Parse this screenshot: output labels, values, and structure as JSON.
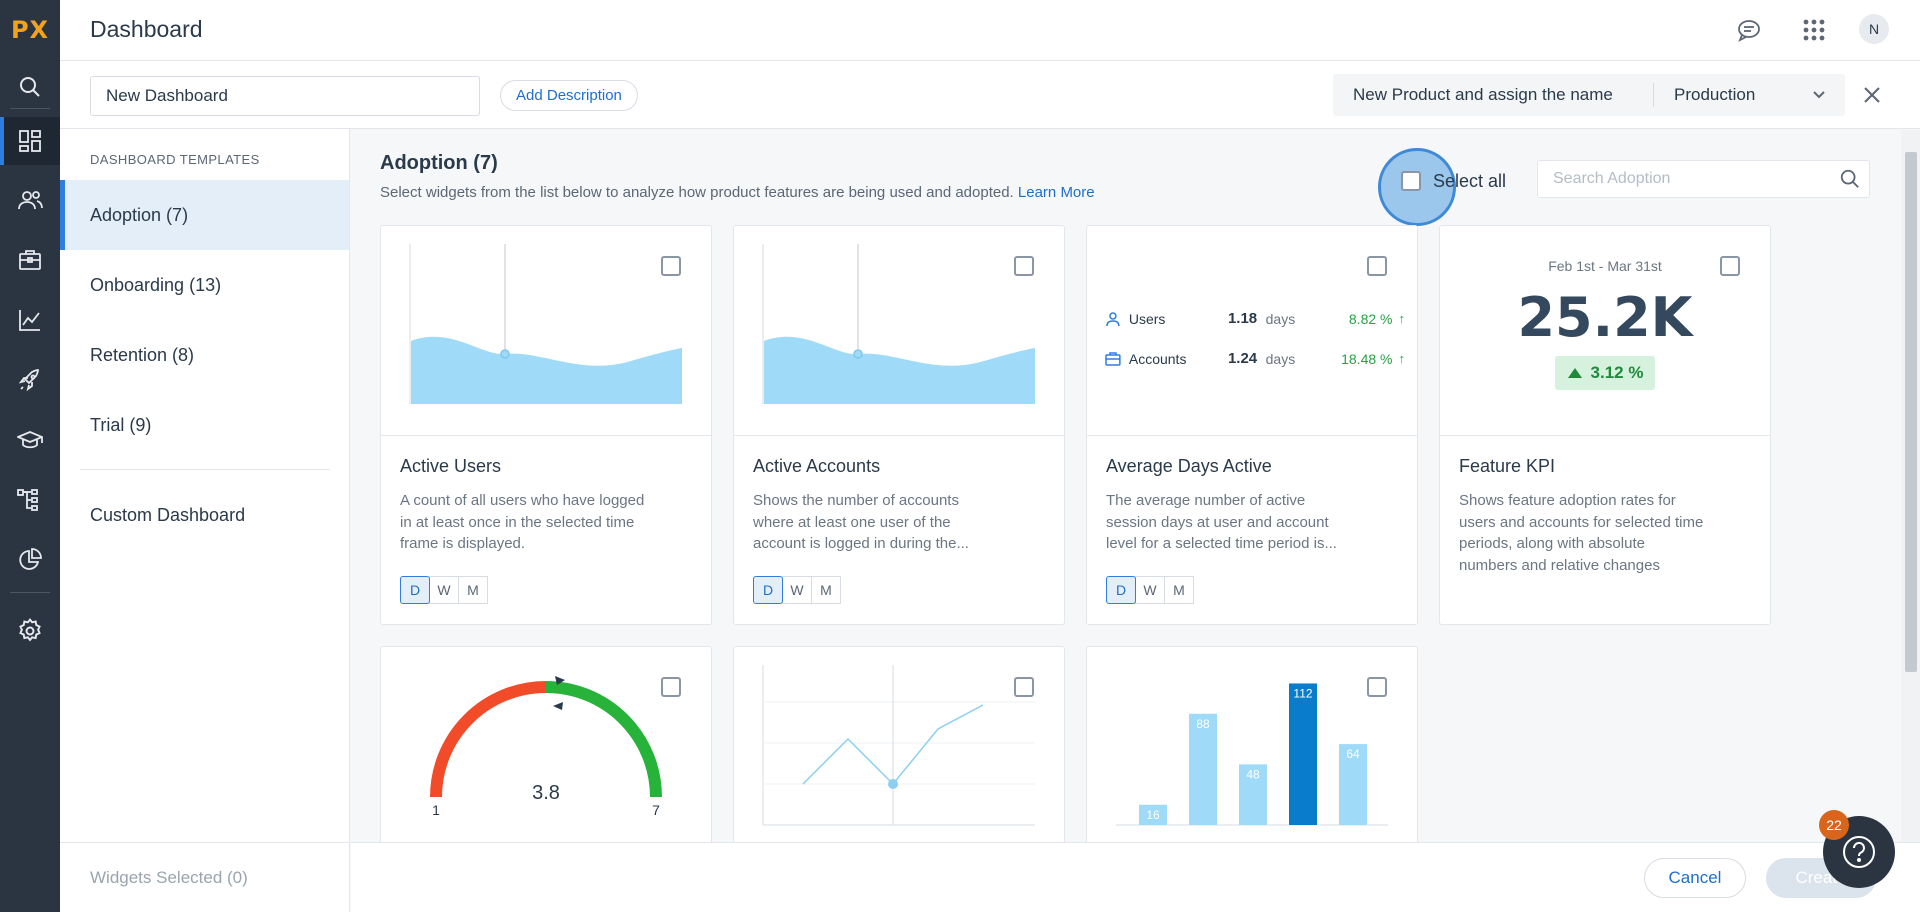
{
  "app": {
    "logo": "PX",
    "title": "Dashboard",
    "avatar_initial": "N"
  },
  "toolbar": {
    "dashboard_name": "New Dashboard",
    "add_description": "Add Description",
    "product_name": "New Product and assign the name",
    "environment": "Production"
  },
  "sidebar": {
    "heading": "DASHBOARD TEMPLATES",
    "items": [
      {
        "label": "Adoption (7)"
      },
      {
        "label": "Onboarding (13)"
      },
      {
        "label": "Retention (8)"
      },
      {
        "label": "Trial (9)"
      }
    ],
    "custom": "Custom Dashboard",
    "widgets_selected": "Widgets Selected (0)"
  },
  "main": {
    "title": "Adoption (7)",
    "description": "Select widgets from the list below to analyze how product features are being used and adopted.",
    "learn_more": "Learn More",
    "select_all": "Select all",
    "search_placeholder": "Search Adoption",
    "cards": [
      {
        "title": "Active Users",
        "description": "A count of all users who have logged in at least once in the selected time frame is displayed.",
        "periods": [
          "D",
          "W",
          "M"
        ]
      },
      {
        "title": "Active Accounts",
        "description": "Shows the number of accounts where at least one user of the account is logged in during the...",
        "periods": [
          "D",
          "W",
          "M"
        ]
      },
      {
        "title": "Average Days Active",
        "description": "The average number of active session days at user and account level for a selected time period is...",
        "periods": [
          "D",
          "W",
          "M"
        ],
        "rows": [
          {
            "label": "Users",
            "value": "1.18",
            "unit": "days",
            "change": "8.82 %",
            "arrow": "↑"
          },
          {
            "label": "Accounts",
            "value": "1.24",
            "unit": "days",
            "change": "18.48 %",
            "arrow": "↑"
          }
        ]
      },
      {
        "title": "Feature KPI",
        "description": "Shows feature adoption rates for users and accounts for selected time periods, along with absolute numbers and relative changes",
        "range": "Feb 1st - Mar 31st",
        "value": "25.2K",
        "change": "3.12 %"
      }
    ],
    "gauge": {
      "min": "1",
      "max": "7",
      "value": "3.8"
    },
    "bars": [
      16,
      88,
      48,
      112,
      64
    ]
  },
  "footer": {
    "cancel": "Cancel",
    "create": "Create"
  },
  "help": {
    "badge": "22"
  },
  "colors": {
    "accent": "#2f7de1",
    "rail": "#2b3441",
    "logo": "#f3a21b",
    "positive": "#25a244"
  }
}
